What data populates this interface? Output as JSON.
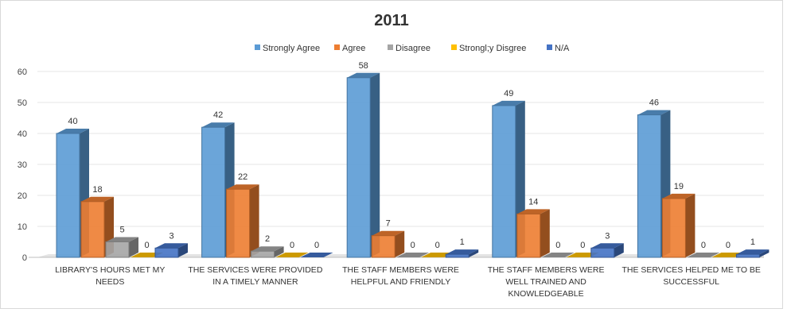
{
  "chart_data": {
    "type": "bar",
    "title": "2011",
    "xlabel": "",
    "ylabel": "",
    "ylim": [
      0,
      60
    ],
    "yticks": [
      "0",
      "10",
      "20",
      "30",
      "40",
      "50",
      "60"
    ],
    "grid": true,
    "legend_position": "top",
    "categories": [
      [
        "LIBRARY'S HOURS MET MY",
        "NEEDS"
      ],
      [
        "THE SERVICES WERE PROVIDED",
        "IN A TIMELY MANNER"
      ],
      [
        "THE STAFF MEMBERS WERE",
        "HELPFUL AND FRIENDLY"
      ],
      [
        "THE STAFF MEMBERS WERE",
        "WELL TRAINED AND",
        "KNOWLEDGEABLE"
      ],
      [
        "THE SERVICES HELPED ME TO BE",
        "SUCCESSFUL"
      ]
    ],
    "series": [
      {
        "name": "Strongly Agree",
        "color": "#5b9bd5",
        "values": [
          40,
          42,
          58,
          49,
          46
        ]
      },
      {
        "name": "Agree",
        "color": "#ed7d31",
        "values": [
          18,
          22,
          7,
          14,
          19
        ]
      },
      {
        "name": "Disagree",
        "color": "#a5a5a5",
        "values": [
          5,
          2,
          0,
          0,
          0
        ]
      },
      {
        "name": "Strongl;y Disgree",
        "color": "#ffc000",
        "values": [
          0,
          0,
          0,
          0,
          0
        ]
      },
      {
        "name": "N/A",
        "color": "#4472c4",
        "values": [
          3,
          0,
          1,
          3,
          1
        ]
      }
    ]
  }
}
